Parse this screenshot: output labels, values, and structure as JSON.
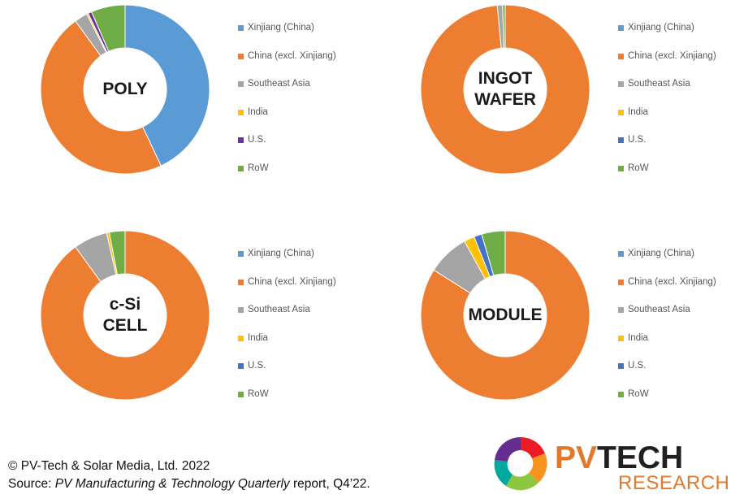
{
  "chart_data": [
    {
      "type": "pie",
      "center_label": [
        "POLY"
      ],
      "categories": [
        "Xinjiang (China)",
        "China (excl. Xinjiang)",
        "Southeast Asia",
        "India",
        "U.S.",
        "RoW"
      ],
      "values": [
        43,
        47,
        2.5,
        0.3,
        0.7,
        6.5
      ]
    },
    {
      "type": "pie",
      "center_label": [
        "INGOT",
        "WAFER"
      ],
      "categories": [
        "Xinjiang (China)",
        "China (excl. Xinjiang)",
        "Southeast Asia",
        "India",
        "U.S.",
        "RoW"
      ],
      "values": [
        0,
        98.5,
        1.0,
        0,
        0,
        0.5
      ]
    },
    {
      "type": "pie",
      "center_label": [
        "c-Si",
        "CELL"
      ],
      "categories": [
        "Xinjiang (China)",
        "China (excl. Xinjiang)",
        "Southeast Asia",
        "India",
        "U.S.",
        "RoW"
      ],
      "values": [
        0,
        90,
        6.5,
        0.5,
        0,
        3
      ]
    },
    {
      "type": "pie",
      "center_label": [
        "MODULE"
      ],
      "categories": [
        "Xinjiang (China)",
        "China (excl. Xinjiang)",
        "Southeast Asia",
        "India",
        "U.S.",
        "RoW"
      ],
      "values": [
        0,
        84,
        8,
        2,
        1.5,
        4.5
      ]
    }
  ],
  "colors": {
    "Xinjiang (China)": "#5b9bd5",
    "China (excl. Xinjiang)": "#ed7d31",
    "Southeast Asia": "#a5a5a5",
    "India": "#ffc000",
    "U.S.": "#4472c4",
    "RoW": "#70ad47",
    "US_poly_override": "#7030a0"
  },
  "footer": {
    "copyright": "© PV-Tech & Solar Media, Ltd. 2022",
    "source_prefix": "Source: ",
    "source_title": "PV Manufacturing & Technology Quarterly",
    "source_suffix": " report, Q4’22."
  },
  "logo": {
    "line1_a": "PV",
    "line1_b": "TECH",
    "line2": "RESEARCH"
  }
}
